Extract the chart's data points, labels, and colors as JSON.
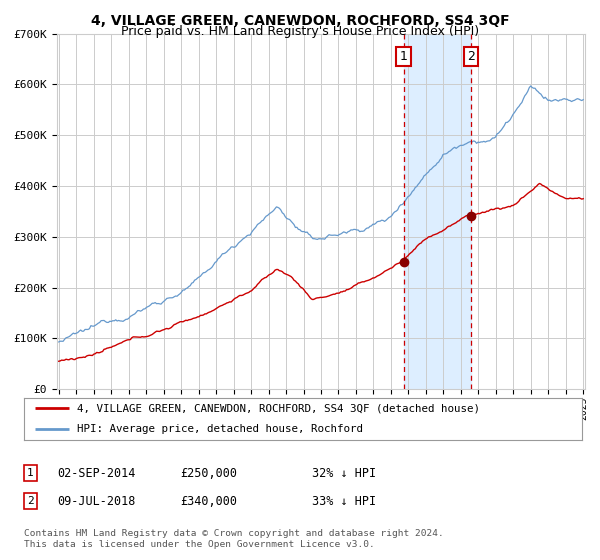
{
  "title": "4, VILLAGE GREEN, CANEWDON, ROCHFORD, SS4 3QF",
  "subtitle": "Price paid vs. HM Land Registry's House Price Index (HPI)",
  "legend_line1": "4, VILLAGE GREEN, CANEWDON, ROCHFORD, SS4 3QF (detached house)",
  "legend_line2": "HPI: Average price, detached house, Rochford",
  "red_color": "#cc0000",
  "blue_color": "#6699cc",
  "point1_value": 250000,
  "point2_value": 340000,
  "shade_color": "#ddeeff",
  "ylim": [
    0,
    700000
  ],
  "yticks": [
    0,
    100000,
    200000,
    300000,
    400000,
    500000,
    600000,
    700000
  ],
  "ytick_labels": [
    "£0",
    "£100K",
    "£200K",
    "£300K",
    "£400K",
    "£500K",
    "£600K",
    "£700K"
  ],
  "background_color": "#ffffff",
  "grid_color": "#cccccc",
  "year_start": 1995,
  "year_end": 2025,
  "point1_year": 2014.67,
  "point2_year": 2018.5,
  "footer": "Contains HM Land Registry data © Crown copyright and database right 2024.\nThis data is licensed under the Open Government Licence v3.0."
}
